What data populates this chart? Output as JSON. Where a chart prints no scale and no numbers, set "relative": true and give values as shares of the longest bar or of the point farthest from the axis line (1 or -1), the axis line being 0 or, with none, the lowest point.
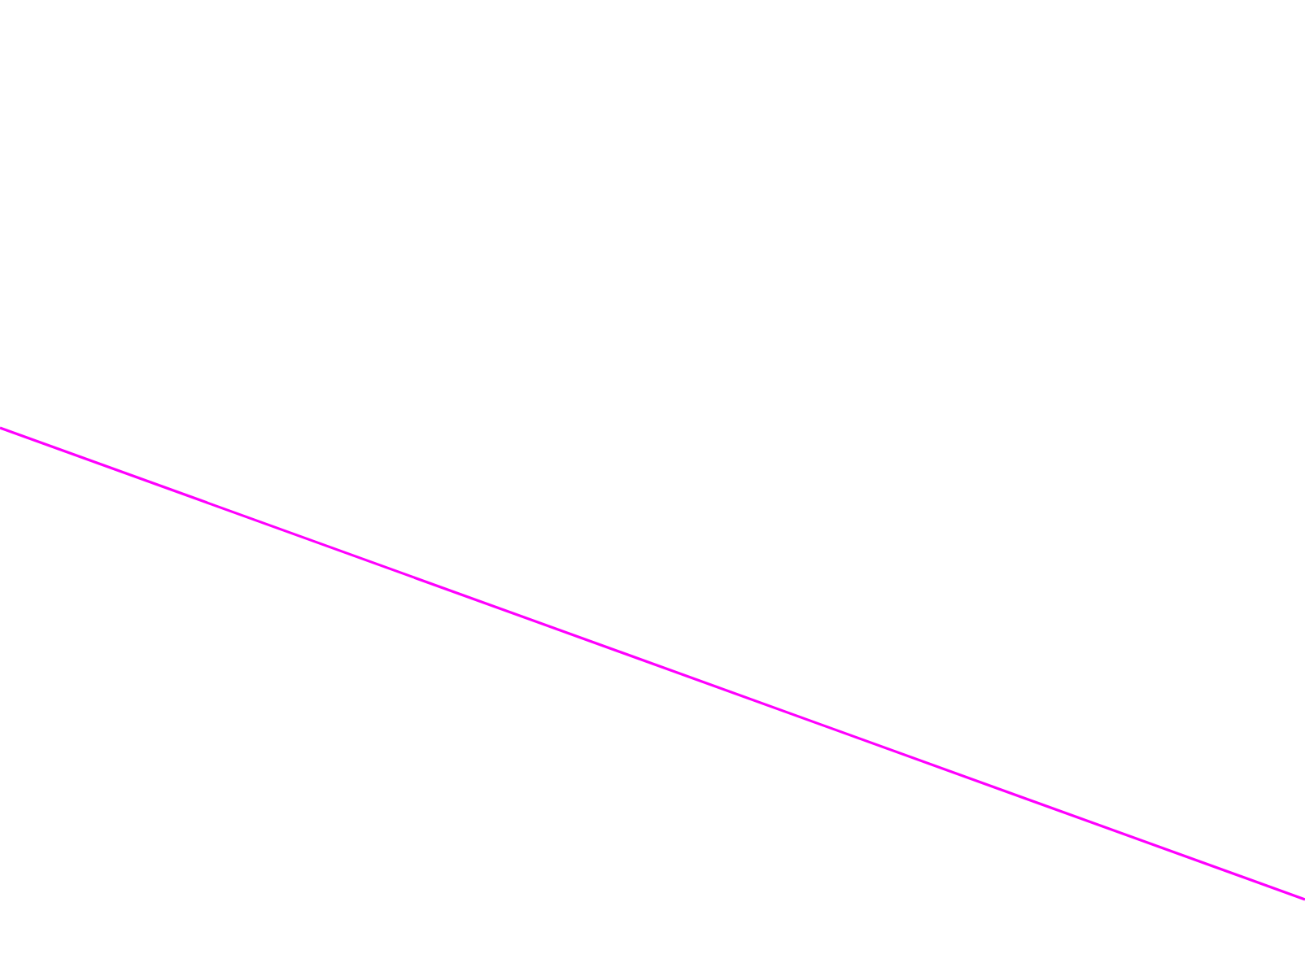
{
  "chart_data": {
    "type": "line",
    "relative": true,
    "categories": [
      null,
      null
    ],
    "series": [
      {
        "color": "#ff00ff",
        "values": [
          1,
          0
        ]
      }
    ]
  }
}
